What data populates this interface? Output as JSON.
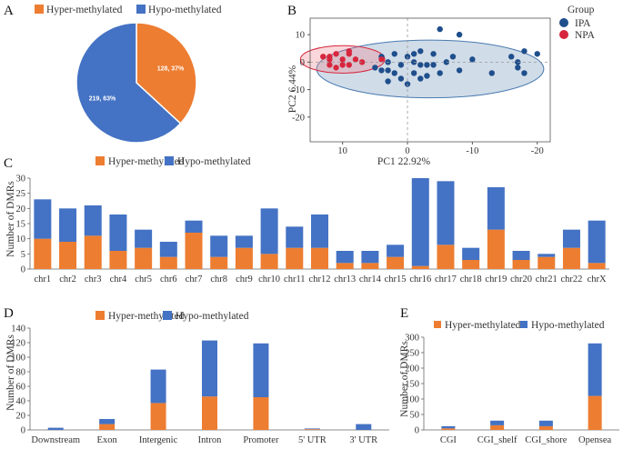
{
  "colors": {
    "hyper": "#ED7D31",
    "hypo": "#4472C4",
    "ipa": "#1F4E8C",
    "npa": "#D7263D"
  },
  "panel_letters": [
    "A",
    "B",
    "C",
    "D",
    "E"
  ],
  "chart_data": [
    {
      "panel": "A",
      "type": "pie",
      "legend": [
        "Hyper-methylated",
        "Hypo-methylated"
      ],
      "slices": [
        {
          "name": "Hyper-methylated",
          "value": 128,
          "label": "128, 37%"
        },
        {
          "name": "Hypo-methylated",
          "value": 219,
          "label": "219, 63%"
        }
      ]
    },
    {
      "panel": "B",
      "type": "scatter",
      "legend_title": "Group",
      "legend": [
        "IPA",
        "NPA"
      ],
      "xlabel": "PC1 22.92%",
      "ylabel": "PC2 6.44%",
      "xlim": [
        15,
        -22
      ],
      "ylim": [
        -29,
        16
      ],
      "xticks": [
        10,
        0,
        -10,
        -20
      ],
      "xtick_labels": [
        "10",
        "0",
        "-10",
        "-20"
      ],
      "yticks": [
        10,
        0,
        -10,
        -20
      ],
      "ytick_labels": [
        "10",
        "0",
        "-10",
        "-20"
      ],
      "series": [
        {
          "name": "IPA",
          "points": [
            [
              -5,
              12
            ],
            [
              -8,
              10
            ],
            [
              -2,
              4
            ],
            [
              -4,
              3
            ],
            [
              -7,
              2
            ],
            [
              -10,
              1
            ],
            [
              -16,
              2
            ],
            [
              -18,
              4
            ],
            [
              -20,
              3
            ],
            [
              -1,
              3
            ],
            [
              -3,
              -1
            ],
            [
              -8,
              -3
            ],
            [
              -13,
              -4
            ],
            [
              -17,
              -2
            ],
            [
              -18,
              -4
            ],
            [
              -17,
              0
            ],
            [
              1,
              -1
            ],
            [
              4,
              -3
            ],
            [
              3,
              0
            ],
            [
              1,
              -6
            ],
            [
              2,
              3
            ],
            [
              4,
              2
            ],
            [
              5,
              -2
            ],
            [
              3,
              -7
            ],
            [
              0,
              -8
            ],
            [
              -2,
              -6
            ],
            [
              -3,
              -5
            ],
            [
              -5,
              -4
            ],
            [
              -2,
              -1
            ],
            [
              -4,
              -1
            ],
            [
              -1,
              -4
            ],
            [
              2,
              -4
            ],
            [
              3,
              -3
            ],
            [
              -6,
              0
            ],
            [
              -1,
              0
            ],
            [
              0,
              2
            ]
          ],
          "ellipse": {
            "cx": -3.5,
            "cy": -2.5,
            "rx": 17.5,
            "ry": 10.5
          }
        },
        {
          "name": "NPA",
          "points": [
            [
              12,
              2
            ],
            [
              11,
              3
            ],
            [
              10,
              1
            ],
            [
              9,
              3
            ],
            [
              8,
              1
            ],
            [
              12,
              -1
            ],
            [
              10,
              -1
            ],
            [
              9,
              -1
            ],
            [
              11,
              -2
            ],
            [
              12,
              1
            ],
            [
              13,
              2
            ],
            [
              7,
              0
            ],
            [
              9,
              4
            ],
            [
              4,
              1
            ]
          ],
          "ellipse": {
            "cx": 10,
            "cy": 1,
            "rx": 6.5,
            "ry": 5
          }
        }
      ]
    },
    {
      "panel": "C",
      "type": "bar",
      "stacked": true,
      "legend": [
        "Hyper-methylated",
        "Hypo-methylated"
      ],
      "ylabel": "Number of DMRs",
      "ylim": [
        0,
        30
      ],
      "yticks": [
        0,
        5,
        10,
        15,
        20,
        25,
        30
      ],
      "categories": [
        "chr1",
        "chr2",
        "chr3",
        "chr4",
        "chr5",
        "chr6",
        "chr7",
        "chr8",
        "chr9",
        "chr10",
        "chr11",
        "chr12",
        "chr13",
        "chr14",
        "chr15",
        "chr16",
        "chr17",
        "chr18",
        "chr19",
        "chr20",
        "chr21",
        "chr22",
        "chrX"
      ],
      "series": [
        {
          "name": "Hyper-methylated",
          "values": [
            10,
            9,
            11,
            6,
            7,
            4,
            12,
            4,
            7,
            5,
            7,
            7,
            2,
            2,
            4,
            1,
            8,
            3,
            13,
            3,
            4,
            7,
            2
          ]
        },
        {
          "name": "Hypo-methylated",
          "values": [
            13,
            11,
            10,
            12,
            6,
            5,
            4,
            7,
            4,
            15,
            7,
            11,
            4,
            4,
            4,
            29,
            21,
            4,
            14,
            3,
            1,
            6,
            14
          ]
        }
      ]
    },
    {
      "panel": "D",
      "type": "bar",
      "stacked": true,
      "legend": [
        "Hyper-methylated",
        "Hypo-methylated"
      ],
      "ylabel": "Number of DMRs",
      "ylim": [
        0,
        140
      ],
      "yticks": [
        0,
        20,
        40,
        60,
        80,
        100,
        120,
        140
      ],
      "categories": [
        "Downstream",
        "Exon",
        "Intergenic",
        "Intron",
        "Promoter",
        "5' UTR",
        "3' UTR"
      ],
      "series": [
        {
          "name": "Hyper-methylated",
          "values": [
            0,
            8,
            37,
            46,
            45,
            1,
            0
          ]
        },
        {
          "name": "Hypo-methylated",
          "values": [
            3,
            7,
            46,
            77,
            74,
            1,
            8
          ]
        }
      ]
    },
    {
      "panel": "E",
      "type": "bar",
      "stacked": true,
      "legend": [
        "Hyper-methylated",
        "Hypo-methylated"
      ],
      "ylabel": "Number of DMRs",
      "ylim": [
        0,
        300
      ],
      "yticks": [
        0,
        50,
        100,
        150,
        200,
        250,
        300
      ],
      "categories": [
        "CGI",
        "CGI_shelf",
        "CGI_shore",
        "Opensea"
      ],
      "series": [
        {
          "name": "Hyper-methylated",
          "values": [
            5,
            15,
            12,
            110
          ]
        },
        {
          "name": "Hypo-methylated",
          "values": [
            7,
            15,
            18,
            170
          ]
        }
      ]
    }
  ]
}
